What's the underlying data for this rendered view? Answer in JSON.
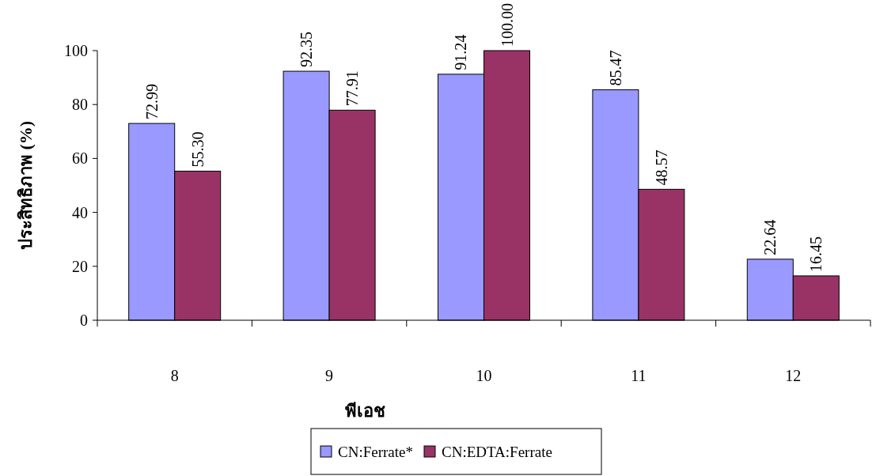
{
  "chart_data": {
    "type": "bar",
    "xlabel": "พีเอช",
    "ylabel": "ประสิทธิภาพ (%)",
    "categories": [
      "8",
      "9",
      "10",
      "11",
      "12"
    ],
    "series": [
      {
        "name": "CN:Ferrate*",
        "color": "#9999ff",
        "values": [
          72.99,
          92.35,
          91.24,
          85.47,
          22.64
        ],
        "value_labels": [
          "72.99",
          "92.35",
          "91.24",
          "85.47",
          "22.64"
        ]
      },
      {
        "name": "CN:EDTA:Ferrate",
        "color": "#993366",
        "values": [
          55.3,
          77.91,
          100.0,
          48.57,
          16.45
        ],
        "value_labels": [
          "55.30",
          "77.91",
          "100.00",
          "48.57",
          "16.45"
        ]
      }
    ],
    "ylim": [
      0,
      100
    ],
    "yticks": [
      0,
      20,
      40,
      60,
      80,
      100
    ],
    "legend": "bottom",
    "grid": false
  }
}
